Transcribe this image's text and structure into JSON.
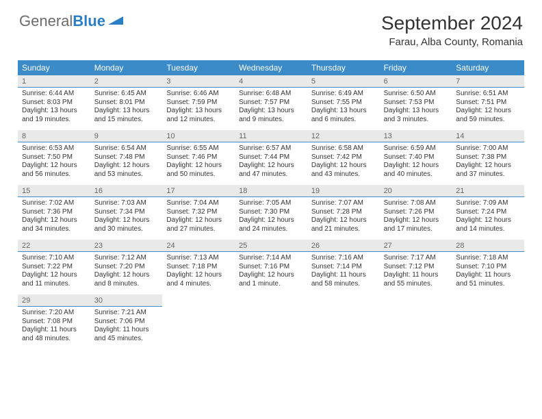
{
  "colors": {
    "header_bar": "#3b8bc9",
    "header_text": "#ffffff",
    "daynum_bg": "#e9e9e9",
    "daynum_band_border": "#3b8bc9",
    "body_text": "#333333",
    "logo_gray": "#6b6b6b",
    "logo_blue": "#2a7fc4",
    "background": "#ffffff"
  },
  "typography": {
    "month_title_fontsize": 28,
    "location_fontsize": 15,
    "weekday_fontsize": 12,
    "daynum_fontsize": 11,
    "body_fontsize": 10,
    "logo_fontsize": 22
  },
  "layout": {
    "calendar_width": 740,
    "columns": 7,
    "rows": 5
  },
  "logo": {
    "part1": "General",
    "part2": "Blue"
  },
  "title": "September 2024",
  "location": "Farau, Alba County, Romania",
  "weekdays": [
    "Sunday",
    "Monday",
    "Tuesday",
    "Wednesday",
    "Thursday",
    "Friday",
    "Saturday"
  ],
  "weeks": [
    [
      {
        "n": "1",
        "sr": "Sunrise: 6:44 AM",
        "ss": "Sunset: 8:03 PM",
        "d1": "Daylight: 13 hours",
        "d2": "and 19 minutes."
      },
      {
        "n": "2",
        "sr": "Sunrise: 6:45 AM",
        "ss": "Sunset: 8:01 PM",
        "d1": "Daylight: 13 hours",
        "d2": "and 15 minutes."
      },
      {
        "n": "3",
        "sr": "Sunrise: 6:46 AM",
        "ss": "Sunset: 7:59 PM",
        "d1": "Daylight: 13 hours",
        "d2": "and 12 minutes."
      },
      {
        "n": "4",
        "sr": "Sunrise: 6:48 AM",
        "ss": "Sunset: 7:57 PM",
        "d1": "Daylight: 13 hours",
        "d2": "and 9 minutes."
      },
      {
        "n": "5",
        "sr": "Sunrise: 6:49 AM",
        "ss": "Sunset: 7:55 PM",
        "d1": "Daylight: 13 hours",
        "d2": "and 6 minutes."
      },
      {
        "n": "6",
        "sr": "Sunrise: 6:50 AM",
        "ss": "Sunset: 7:53 PM",
        "d1": "Daylight: 13 hours",
        "d2": "and 3 minutes."
      },
      {
        "n": "7",
        "sr": "Sunrise: 6:51 AM",
        "ss": "Sunset: 7:51 PM",
        "d1": "Daylight: 12 hours",
        "d2": "and 59 minutes."
      }
    ],
    [
      {
        "n": "8",
        "sr": "Sunrise: 6:53 AM",
        "ss": "Sunset: 7:50 PM",
        "d1": "Daylight: 12 hours",
        "d2": "and 56 minutes."
      },
      {
        "n": "9",
        "sr": "Sunrise: 6:54 AM",
        "ss": "Sunset: 7:48 PM",
        "d1": "Daylight: 12 hours",
        "d2": "and 53 minutes."
      },
      {
        "n": "10",
        "sr": "Sunrise: 6:55 AM",
        "ss": "Sunset: 7:46 PM",
        "d1": "Daylight: 12 hours",
        "d2": "and 50 minutes."
      },
      {
        "n": "11",
        "sr": "Sunrise: 6:57 AM",
        "ss": "Sunset: 7:44 PM",
        "d1": "Daylight: 12 hours",
        "d2": "and 47 minutes."
      },
      {
        "n": "12",
        "sr": "Sunrise: 6:58 AM",
        "ss": "Sunset: 7:42 PM",
        "d1": "Daylight: 12 hours",
        "d2": "and 43 minutes."
      },
      {
        "n": "13",
        "sr": "Sunrise: 6:59 AM",
        "ss": "Sunset: 7:40 PM",
        "d1": "Daylight: 12 hours",
        "d2": "and 40 minutes."
      },
      {
        "n": "14",
        "sr": "Sunrise: 7:00 AM",
        "ss": "Sunset: 7:38 PM",
        "d1": "Daylight: 12 hours",
        "d2": "and 37 minutes."
      }
    ],
    [
      {
        "n": "15",
        "sr": "Sunrise: 7:02 AM",
        "ss": "Sunset: 7:36 PM",
        "d1": "Daylight: 12 hours",
        "d2": "and 34 minutes."
      },
      {
        "n": "16",
        "sr": "Sunrise: 7:03 AM",
        "ss": "Sunset: 7:34 PM",
        "d1": "Daylight: 12 hours",
        "d2": "and 30 minutes."
      },
      {
        "n": "17",
        "sr": "Sunrise: 7:04 AM",
        "ss": "Sunset: 7:32 PM",
        "d1": "Daylight: 12 hours",
        "d2": "and 27 minutes."
      },
      {
        "n": "18",
        "sr": "Sunrise: 7:05 AM",
        "ss": "Sunset: 7:30 PM",
        "d1": "Daylight: 12 hours",
        "d2": "and 24 minutes."
      },
      {
        "n": "19",
        "sr": "Sunrise: 7:07 AM",
        "ss": "Sunset: 7:28 PM",
        "d1": "Daylight: 12 hours",
        "d2": "and 21 minutes."
      },
      {
        "n": "20",
        "sr": "Sunrise: 7:08 AM",
        "ss": "Sunset: 7:26 PM",
        "d1": "Daylight: 12 hours",
        "d2": "and 17 minutes."
      },
      {
        "n": "21",
        "sr": "Sunrise: 7:09 AM",
        "ss": "Sunset: 7:24 PM",
        "d1": "Daylight: 12 hours",
        "d2": "and 14 minutes."
      }
    ],
    [
      {
        "n": "22",
        "sr": "Sunrise: 7:10 AM",
        "ss": "Sunset: 7:22 PM",
        "d1": "Daylight: 12 hours",
        "d2": "and 11 minutes."
      },
      {
        "n": "23",
        "sr": "Sunrise: 7:12 AM",
        "ss": "Sunset: 7:20 PM",
        "d1": "Daylight: 12 hours",
        "d2": "and 8 minutes."
      },
      {
        "n": "24",
        "sr": "Sunrise: 7:13 AM",
        "ss": "Sunset: 7:18 PM",
        "d1": "Daylight: 12 hours",
        "d2": "and 4 minutes."
      },
      {
        "n": "25",
        "sr": "Sunrise: 7:14 AM",
        "ss": "Sunset: 7:16 PM",
        "d1": "Daylight: 12 hours",
        "d2": "and 1 minute."
      },
      {
        "n": "26",
        "sr": "Sunrise: 7:16 AM",
        "ss": "Sunset: 7:14 PM",
        "d1": "Daylight: 11 hours",
        "d2": "and 58 minutes."
      },
      {
        "n": "27",
        "sr": "Sunrise: 7:17 AM",
        "ss": "Sunset: 7:12 PM",
        "d1": "Daylight: 11 hours",
        "d2": "and 55 minutes."
      },
      {
        "n": "28",
        "sr": "Sunrise: 7:18 AM",
        "ss": "Sunset: 7:10 PM",
        "d1": "Daylight: 11 hours",
        "d2": "and 51 minutes."
      }
    ],
    [
      {
        "n": "29",
        "sr": "Sunrise: 7:20 AM",
        "ss": "Sunset: 7:08 PM",
        "d1": "Daylight: 11 hours",
        "d2": "and 48 minutes."
      },
      {
        "n": "30",
        "sr": "Sunrise: 7:21 AM",
        "ss": "Sunset: 7:06 PM",
        "d1": "Daylight: 11 hours",
        "d2": "and 45 minutes."
      },
      {
        "n": "",
        "sr": "",
        "ss": "",
        "d1": "",
        "d2": ""
      },
      {
        "n": "",
        "sr": "",
        "ss": "",
        "d1": "",
        "d2": ""
      },
      {
        "n": "",
        "sr": "",
        "ss": "",
        "d1": "",
        "d2": ""
      },
      {
        "n": "",
        "sr": "",
        "ss": "",
        "d1": "",
        "d2": ""
      },
      {
        "n": "",
        "sr": "",
        "ss": "",
        "d1": "",
        "d2": ""
      }
    ]
  ]
}
